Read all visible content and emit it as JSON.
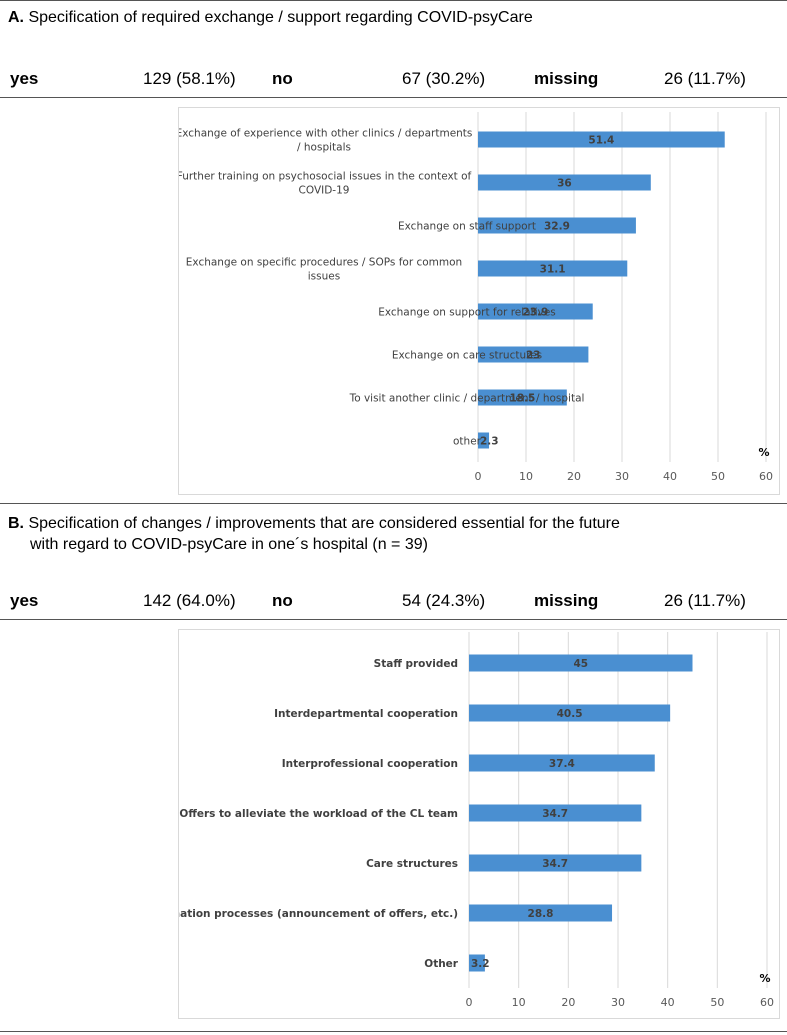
{
  "sections": [
    {
      "letter": "A.",
      "title_lines": [
        "Specification of required exchange / support regarding COVID-psyCare"
      ],
      "stats": {
        "yes_label": "yes",
        "yes_value": "129 (58.1%)",
        "no_label": "no",
        "no_value": "67 (30.2%)",
        "missing_label": "missing",
        "missing_value": "26 (11.7%)"
      }
    },
    {
      "letter": "B.",
      "title_lines": [
        "Specification of changes / improvements that are considered essential for the future",
        "with regard to COVID-psyCare in one´s hospital (n = 39)"
      ],
      "stats": {
        "yes_label": "yes",
        "yes_value": "142 (64.0%)",
        "no_label": "no",
        "no_value": "54 (24.3%)",
        "missing_label": "missing",
        "missing_value": "26 (11.7%)"
      }
    }
  ],
  "chart_data": [
    {
      "type": "bar",
      "orientation": "horizontal",
      "categories": [
        [
          "Exchange of experience with other clinics / departments",
          "/ hospitals"
        ],
        [
          "Further training on psychosocial issues in the context of",
          "COVID-19"
        ],
        [
          "Exchange on staff support"
        ],
        [
          "Exchange on specific procedures / SOPs for common",
          "issues"
        ],
        [
          "Exchange on support for relatives"
        ],
        [
          "Exchange on care structures"
        ],
        [
          "To visit another clinic / department / hospital"
        ],
        [
          "other"
        ]
      ],
      "values": [
        51.4,
        36,
        32.9,
        31.1,
        23.9,
        23,
        18.5,
        2.3
      ],
      "value_labels": [
        "51.4",
        "36",
        "32.9",
        "31.1",
        "23.9",
        "23",
        "18.5",
        "2.3"
      ],
      "xlim": [
        0,
        60
      ],
      "ticks": [
        "0",
        "10",
        "20",
        "30",
        "40",
        "50",
        "60"
      ],
      "unit": "%",
      "bar_color": "#4a8fd1",
      "grid": true,
      "bold_categories": false
    },
    {
      "type": "bar",
      "orientation": "horizontal",
      "categories": [
        [
          "Staff provided"
        ],
        [
          "Interdepartmental cooperation"
        ],
        [
          "Interprofessional cooperation"
        ],
        [
          "Offers to alleviate the workload of the CL team"
        ],
        [
          "Care structures"
        ],
        [
          "Information processes (announcement of offers, etc.)"
        ],
        [
          "Other"
        ]
      ],
      "values": [
        45,
        40.5,
        37.4,
        34.7,
        34.7,
        28.8,
        3.2
      ],
      "value_labels": [
        "45",
        "40.5",
        "37.4",
        "34.7",
        "34.7",
        "28.8",
        "3.2"
      ],
      "xlim": [
        0,
        60
      ],
      "ticks": [
        "0",
        "10",
        "20",
        "30",
        "40",
        "50",
        "60"
      ],
      "unit": "%",
      "bar_color": "#4a8fd1",
      "grid": true,
      "bold_categories": true
    }
  ]
}
